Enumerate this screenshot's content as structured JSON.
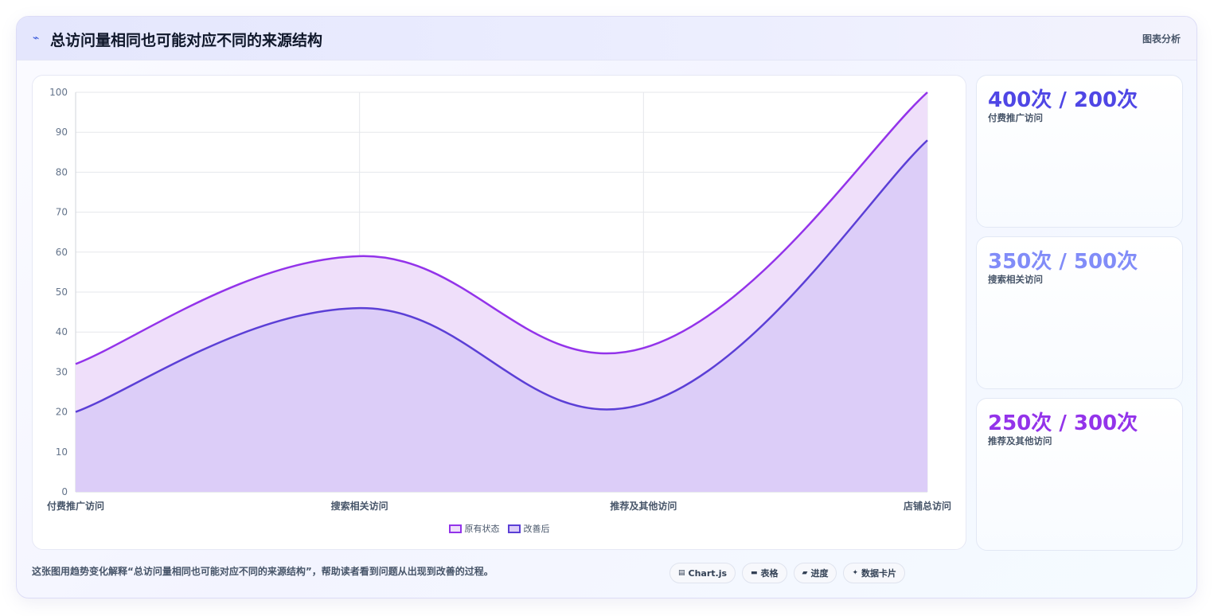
{
  "header": {
    "icon": "wave-icon",
    "title": "总访问量相同也可能对应不同的来源结构",
    "tag": "图表分析"
  },
  "chart_data": {
    "type": "area",
    "categories": [
      "付费推广访问",
      "搜索相关访问",
      "推荐及其他访问",
      "店铺总访问"
    ],
    "series": [
      {
        "name": "原有状态",
        "values": [
          32,
          59,
          36,
          100
        ],
        "color": "#9333ea",
        "fill": "#efdffa"
      },
      {
        "name": "改善后",
        "values": [
          20,
          46,
          22,
          88
        ],
        "color": "#5b3fd6",
        "fill": "#dccdf8"
      }
    ],
    "ylim": [
      0,
      100
    ],
    "yticks": [
      0,
      10,
      20,
      30,
      40,
      50,
      60,
      70,
      80,
      90,
      100
    ],
    "grid": true,
    "legend": "bottom-center"
  },
  "kpis": [
    {
      "value": "400次 / 200次",
      "label": "付费推广访问",
      "color": "#4f46e5"
    },
    {
      "value": "350次 / 500次",
      "label": "搜索相关访问",
      "color": "#818cf8"
    },
    {
      "value": "250次 / 300次",
      "label": "推荐及其他访问",
      "color": "#9333ea"
    }
  ],
  "footer": {
    "text": "这张图用趋势变化解释“总访问量相同也可能对应不同的来源结构”，帮助读者看到问题从出现到改善的过程。",
    "pills": [
      {
        "icon": "chart-icon",
        "glyph": "▤",
        "label": "Chart.js"
      },
      {
        "icon": "table-icon",
        "glyph": "▬",
        "label": "表格"
      },
      {
        "icon": "progress-icon",
        "glyph": "▰",
        "label": "进度"
      },
      {
        "icon": "sparkle-icon",
        "glyph": "✦",
        "label": "数据卡片"
      }
    ]
  }
}
